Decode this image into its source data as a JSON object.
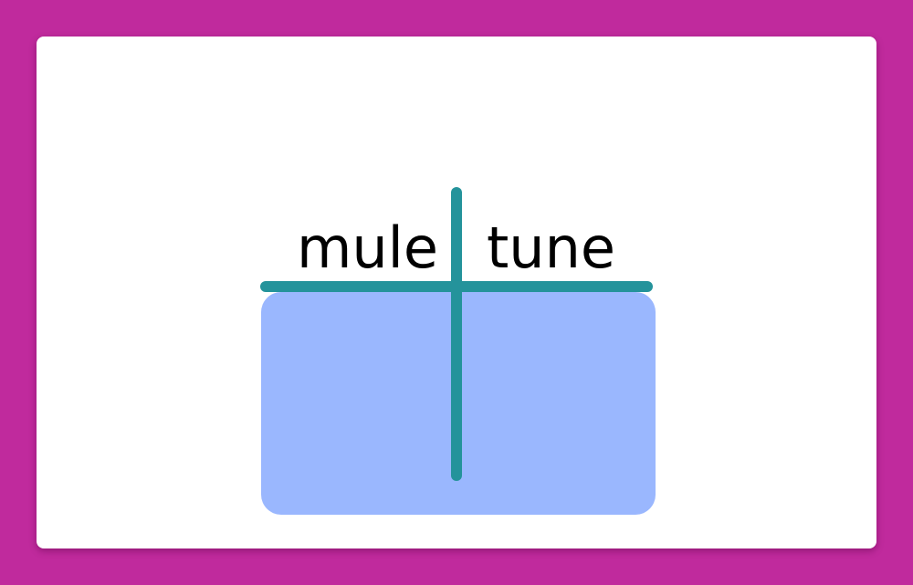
{
  "columns": [
    {
      "label": "mule"
    },
    {
      "label": "tune"
    }
  ],
  "colors": {
    "background": "#c02a9d",
    "card": "#ffffff",
    "sort_box": "#9ab7fe",
    "divider": "#24939b",
    "text": "#000000"
  }
}
